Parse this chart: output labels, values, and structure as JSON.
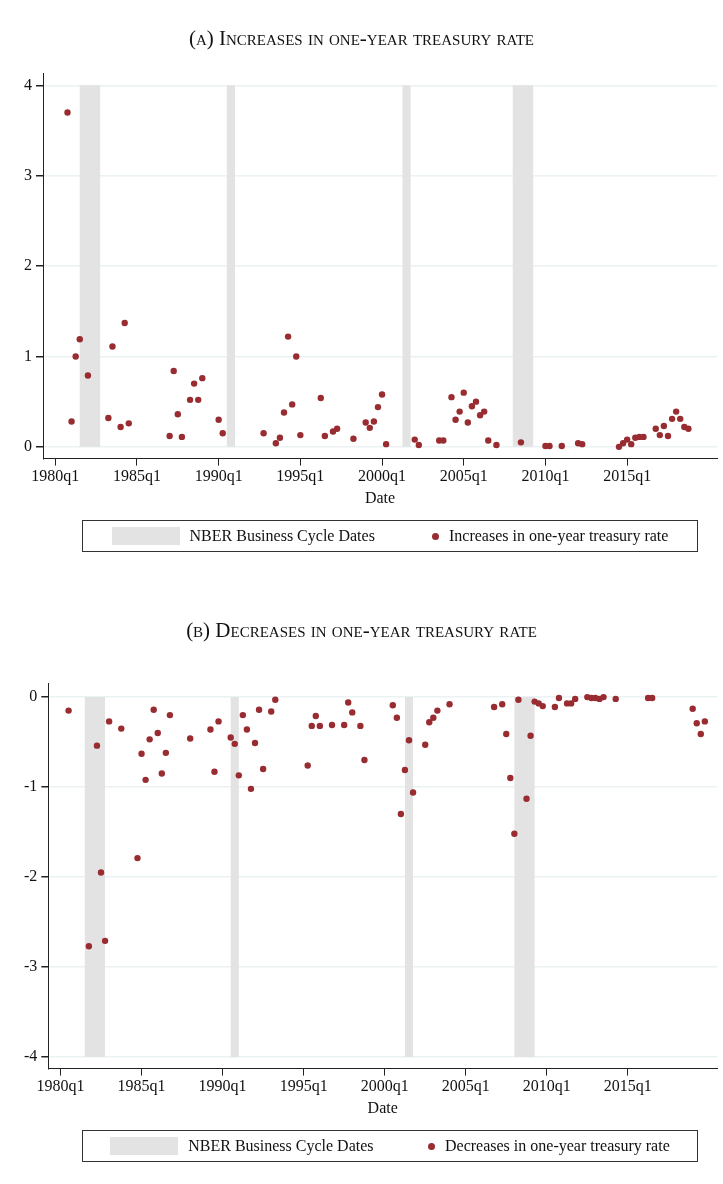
{
  "chart_data": [
    {
      "type": "scatter",
      "title": "(a) Increases in one-year treasury rate",
      "xlabel": "Date",
      "grid": "y",
      "legend": "bottom",
      "marker": "circle",
      "xlim": [
        "1979-04",
        "2020-07"
      ],
      "xticks": [
        {
          "value": "1980-01",
          "label": "1980q1"
        },
        {
          "value": "1985-01",
          "label": "1985q1"
        },
        {
          "value": "1990-01",
          "label": "1990q1"
        },
        {
          "value": "1995-01",
          "label": "1995q1"
        },
        {
          "value": "2000-01",
          "label": "2000q1"
        },
        {
          "value": "2005-01",
          "label": "2005q1"
        },
        {
          "value": "2010-01",
          "label": "2010q1"
        },
        {
          "value": "2015-01",
          "label": "2015q1"
        }
      ],
      "ylim": [
        -0.13,
        4.13
      ],
      "yticks": [
        0,
        1,
        2,
        3,
        4
      ],
      "bands": [
        {
          "axis": "x",
          "from": "1981-07",
          "to": "1982-10",
          "label": "NBER Business Cycle Dates",
          "color": "#e3e3e3"
        },
        {
          "axis": "x",
          "from": "1990-07",
          "to": "1991-01",
          "color": "#e3e3e3"
        },
        {
          "axis": "x",
          "from": "2001-04",
          "to": "2001-10",
          "color": "#e3e3e3"
        },
        {
          "axis": "x",
          "from": "2008-01",
          "to": "2009-04",
          "color": "#e3e3e3"
        }
      ],
      "series": [
        {
          "name": "Increases in one-year treasury rate",
          "color": "#982c31",
          "x": [
            "1980-10",
            "1981-01",
            "1981-04",
            "1981-07",
            "1982-01",
            "1983-04",
            "1983-07",
            "1984-01",
            "1984-04",
            "1984-07",
            "1987-01",
            "1987-04",
            "1987-07",
            "1987-10",
            "1988-04",
            "1988-07",
            "1988-10",
            "1989-01",
            "1990-01",
            "1990-04",
            "1992-10",
            "1993-07",
            "1993-10",
            "1994-01",
            "1994-04",
            "1994-07",
            "1994-10",
            "1995-01",
            "1996-04",
            "1996-07",
            "1997-01",
            "1997-04",
            "1998-04",
            "1999-01",
            "1999-04",
            "1999-07",
            "1999-10",
            "2000-01",
            "2000-04",
            "2002-01",
            "2002-04",
            "2003-07",
            "2003-10",
            "2004-04",
            "2004-07",
            "2004-10",
            "2005-01",
            "2005-04",
            "2005-07",
            "2005-10",
            "2006-01",
            "2006-04",
            "2006-07",
            "2007-01",
            "2008-07",
            "2010-01",
            "2010-04",
            "2011-01",
            "2012-01",
            "2012-04",
            "2014-07",
            "2014-10",
            "2015-01",
            "2015-04",
            "2015-07",
            "2015-10",
            "2016-01",
            "2016-10",
            "2017-01",
            "2017-04",
            "2017-07",
            "2017-10",
            "2018-01",
            "2018-04",
            "2018-07",
            "2018-10"
          ],
          "values": [
            3.7,
            0.28,
            1.0,
            1.19,
            0.79,
            0.32,
            1.11,
            0.22,
            1.37,
            0.26,
            0.12,
            0.84,
            0.36,
            0.11,
            0.52,
            0.7,
            0.52,
            0.76,
            0.3,
            0.15,
            0.15,
            0.04,
            0.1,
            0.38,
            1.22,
            0.47,
            1.0,
            0.13,
            0.54,
            0.12,
            0.17,
            0.2,
            0.09,
            0.27,
            0.21,
            0.28,
            0.44,
            0.58,
            0.03,
            0.08,
            0.02,
            0.07,
            0.07,
            0.55,
            0.3,
            0.39,
            0.6,
            0.27,
            0.45,
            0.5,
            0.35,
            0.39,
            0.07,
            0.02,
            0.05,
            0.01,
            0.01,
            0.01,
            0.04,
            0.03,
            0.0,
            0.04,
            0.08,
            0.03,
            0.1,
            0.11,
            0.11,
            0.2,
            0.13,
            0.23,
            0.12,
            0.31,
            0.39,
            0.31,
            0.22,
            0.2
          ]
        }
      ]
    },
    {
      "type": "scatter",
      "title": "(b) Decreases in one-year treasury rate",
      "xlabel": "Date",
      "grid": "y",
      "legend": "bottom",
      "marker": "circle",
      "xlim": [
        "1979-04",
        "2020-07"
      ],
      "xticks": [
        {
          "value": "1980-01",
          "label": "1980q1"
        },
        {
          "value": "1985-01",
          "label": "1985q1"
        },
        {
          "value": "1990-01",
          "label": "1990q1"
        },
        {
          "value": "1995-01",
          "label": "1995q1"
        },
        {
          "value": "2000-01",
          "label": "2000q1"
        },
        {
          "value": "2005-01",
          "label": "2005q1"
        },
        {
          "value": "2010-01",
          "label": "2010q1"
        },
        {
          "value": "2015-01",
          "label": "2015q1"
        }
      ],
      "ylim": [
        -4.13,
        0.15
      ],
      "yticks": [
        -4,
        -3,
        -2,
        -1,
        0
      ],
      "bands": [
        {
          "axis": "x",
          "from": "1981-07",
          "to": "1982-10",
          "label": "NBER Business Cycle Dates",
          "color": "#e3e3e3"
        },
        {
          "axis": "x",
          "from": "1990-07",
          "to": "1991-01",
          "color": "#e3e3e3"
        },
        {
          "axis": "x",
          "from": "2001-04",
          "to": "2001-10",
          "color": "#e3e3e3"
        },
        {
          "axis": "x",
          "from": "2008-01",
          "to": "2009-04",
          "color": "#e3e3e3"
        }
      ],
      "series": [
        {
          "name": "Decreases in one-year treasury rate",
          "color": "#982c31",
          "x": [
            "1980-07",
            "1981-10",
            "1982-04",
            "1982-07",
            "1982-10",
            "1983-01",
            "1983-10",
            "1984-10",
            "1985-01",
            "1985-04",
            "1985-07",
            "1985-10",
            "1986-01",
            "1986-04",
            "1986-07",
            "1986-10",
            "1988-01",
            "1989-04",
            "1989-07",
            "1989-10",
            "1990-07",
            "1990-10",
            "1991-01",
            "1991-04",
            "1991-07",
            "1991-10",
            "1992-01",
            "1992-04",
            "1992-07",
            "1993-01",
            "1993-04",
            "1995-04",
            "1995-07",
            "1995-10",
            "1996-01",
            "1996-10",
            "1997-07",
            "1997-10",
            "1998-01",
            "1998-07",
            "1998-10",
            "2000-07",
            "2000-10",
            "2001-01",
            "2001-04",
            "2001-07",
            "2001-10",
            "2002-07",
            "2002-10",
            "2003-01",
            "2003-04",
            "2004-01",
            "2006-10",
            "2007-04",
            "2007-07",
            "2007-10",
            "2008-01",
            "2008-04",
            "2008-10",
            "2009-01",
            "2009-04",
            "2009-07",
            "2009-10",
            "2010-07",
            "2010-10",
            "2011-04",
            "2011-07",
            "2011-10",
            "2012-07",
            "2012-10",
            "2013-01",
            "2013-04",
            "2013-07",
            "2014-04",
            "2016-04",
            "2016-07",
            "2019-01",
            "2019-04",
            "2019-07",
            "2019-10"
          ],
          "values": [
            -0.15,
            -2.77,
            -0.54,
            -1.95,
            -2.71,
            -0.27,
            -0.35,
            -1.79,
            -0.63,
            -0.92,
            -0.47,
            -0.14,
            -0.4,
            -0.85,
            -0.62,
            -0.2,
            -0.46,
            -0.36,
            -0.83,
            -0.27,
            -0.45,
            -0.52,
            -0.87,
            -0.2,
            -0.36,
            -1.02,
            -0.51,
            -0.14,
            -0.8,
            -0.16,
            -0.03,
            -0.76,
            -0.32,
            -0.21,
            -0.32,
            -0.31,
            -0.31,
            -0.06,
            -0.17,
            -0.32,
            -0.7,
            -0.09,
            -0.23,
            -1.3,
            -0.81,
            -0.48,
            -1.06,
            -0.53,
            -0.28,
            -0.23,
            -0.15,
            -0.08,
            -0.11,
            -0.08,
            -0.41,
            -0.9,
            -1.52,
            -0.03,
            -1.13,
            -0.43,
            -0.05,
            -0.07,
            -0.1,
            -0.11,
            -0.01,
            -0.07,
            -0.07,
            -0.02,
            0.0,
            -0.01,
            -0.01,
            -0.02,
            0.0,
            -0.02,
            -0.01,
            -0.01,
            -0.13,
            -0.29,
            -0.41,
            -0.27
          ]
        }
      ]
    }
  ]
}
